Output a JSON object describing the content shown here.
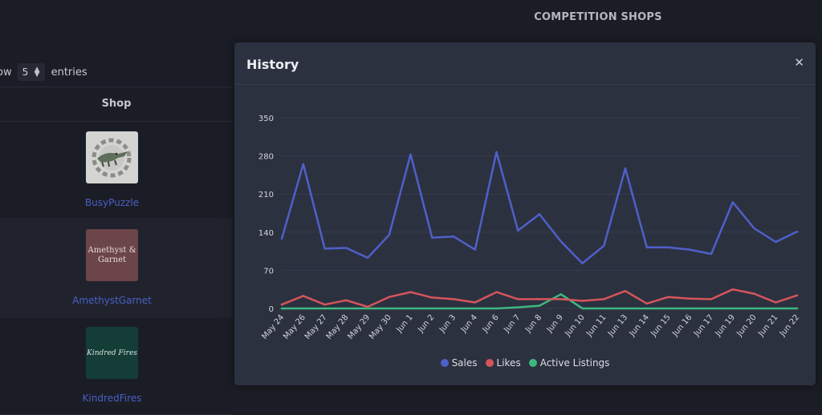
{
  "page": {
    "title": "COMPETITION SHOPS"
  },
  "table_controls": {
    "show_label": "ow",
    "entries_value": "5",
    "entries_label": "entries"
  },
  "table": {
    "column_header": "Shop",
    "rows": [
      {
        "name": "BusyPuzzle",
        "thumb": "busy"
      },
      {
        "name": "AmethystGarnet",
        "thumb": "amethyst",
        "thumb_text": "Amethyst & Garnet"
      },
      {
        "name": "KindredFires",
        "thumb": "kindred",
        "thumb_text": "Kindred Fires"
      }
    ]
  },
  "modal": {
    "title": "History",
    "close_icon": "close-icon"
  },
  "chart_data": {
    "type": "line",
    "categories": [
      "May 24",
      "May 26",
      "May 27",
      "May 28",
      "May 29",
      "May 30",
      "Jun 1",
      "Jun 2",
      "Jun 3",
      "Jun 4",
      "Jun 6",
      "Jun 7",
      "Jun 8",
      "Jun 9",
      "Jun 10",
      "Jun 11",
      "Jun 13",
      "Jun 14",
      "Jun 15",
      "Jun 16",
      "Jun 17",
      "Jun 19",
      "Jun 20",
      "Jun 21",
      "Jun 22"
    ],
    "series": [
      {
        "name": "Sales",
        "color": "#4e60c9",
        "values": [
          128,
          265,
          110,
          111,
          93,
          135,
          283,
          130,
          132,
          108,
          287,
          143,
          173,
          123,
          83,
          115,
          257,
          112,
          112,
          108,
          100,
          195,
          147,
          122,
          141
        ]
      },
      {
        "name": "Likes",
        "color": "#d6555b",
        "values": [
          7,
          23,
          7,
          15,
          3,
          21,
          30,
          20,
          17,
          11,
          30,
          17,
          17,
          17,
          14,
          17,
          32,
          9,
          21,
          18,
          17,
          35,
          27,
          11,
          24
        ]
      },
      {
        "name": "Active Listings",
        "color": "#3fb87f",
        "values": [
          0,
          0,
          0,
          0,
          0,
          0,
          0,
          0,
          0,
          0,
          0,
          2,
          5,
          26,
          0,
          0,
          0,
          0,
          0,
          0,
          0,
          0,
          0,
          0,
          0
        ]
      }
    ],
    "ylim": [
      0,
      350
    ],
    "yticks": [
      0,
      70,
      140,
      210,
      280,
      350
    ],
    "grid": true,
    "legend": "bottom-center"
  }
}
